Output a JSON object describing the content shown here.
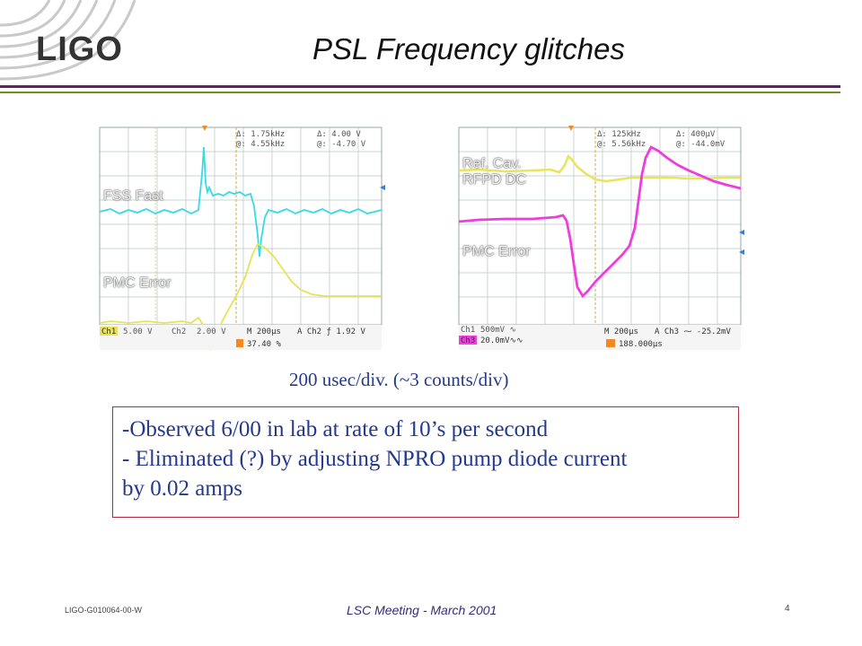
{
  "slide": {
    "logo": "LIGO",
    "title": "PSL Frequency glitches",
    "caption": "200 usec/div. (~3 counts/div)",
    "notes": [
      "-Observed 6/00 in lab at rate of 10’s per second",
      "- Eliminated (?) by adjusting  NPRO pump diode current",
      "by 0.02 amps"
    ],
    "footer": {
      "doc_id": "LIGO-G010064-00-W",
      "meeting": "LSC Meeting - March 2001",
      "page": "4"
    }
  },
  "scope_left": {
    "labels": {
      "top": "FSS Fast",
      "bottom": "PMC Error"
    },
    "readout": {
      "r1a": "Δ: 1.75kHz",
      "r1b": "Δ: 4.00 V",
      "r2a": "@: 4.55kHz",
      "r2b": "@: -4.70 V"
    },
    "status": {
      "ch1": "Ch1",
      "ch1v": "5.00 V",
      "ch2": "Ch2",
      "ch2v": "2.00 V",
      "time": "M 200µs",
      "trig": "A Ch2 ƒ 1.92 V",
      "pos": "37.40 %"
    },
    "colors": {
      "trace_top": "#35dbe6",
      "trace_bottom": "#e6e25a",
      "grid": "#b9c6c4"
    }
  },
  "scope_right": {
    "labels": {
      "top": "Ref. Cav.\nRFPD DC",
      "bottom": "PMC Error"
    },
    "readout": {
      "r1a": "Δ: 125kHz",
      "r1b": "Δ: 400µV",
      "r2a": "@: 5.56kHz",
      "r2b": "@: -44.0mV"
    },
    "status": {
      "ch1": "Ch1",
      "ch1v": "500mV ∿",
      "ch3": "Ch3",
      "ch3v": "20.0mV∿∿",
      "time": "M 200µs",
      "trig": "A Ch3 ⁓ -25.2mV",
      "pos": "188.000µs"
    },
    "colors": {
      "trace_top": "#e7e55b",
      "trace_bottom": "#f03cdd",
      "grid": "#b9c6c4"
    }
  }
}
